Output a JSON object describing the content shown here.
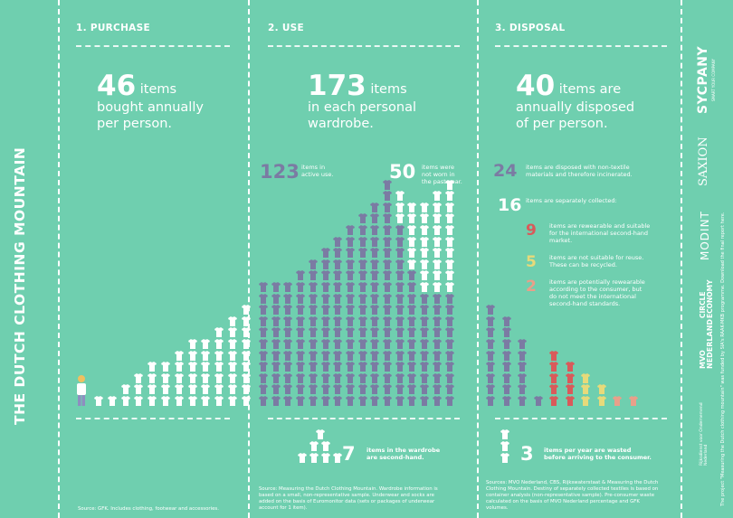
{
  "title": "THE DUTCH CLOTHING MOUNTAIN",
  "colors": {
    "background": "#6fcfaf",
    "white": "#ffffff",
    "purple": "#7b7ba3",
    "red": "#d95a5a",
    "yellow": "#e7da7a",
    "peach": "#e8a08a",
    "figure": "#f0c060"
  },
  "purchase": {
    "heading": "1. PURCHASE",
    "number": "46",
    "text": [
      "items",
      "bought annually",
      "per person."
    ],
    "source": "Source: GFK. Includes clothing, footwear and accessories."
  },
  "use": {
    "heading": "2. USE",
    "number": "173",
    "text": [
      "items",
      "in each personal",
      "wardrobe."
    ],
    "active_num": "123",
    "active_text": [
      "items in",
      "active use."
    ],
    "notworn_num": "50",
    "notworn_text": [
      "items were",
      "not worn in",
      "the past year."
    ],
    "second_num": "7",
    "second_text": [
      "items in the wardrobe",
      "are second-hand."
    ],
    "source": [
      "Source: Measuring the Dutch Clothing Mountain. Wardrobe information is",
      "based on a small, non-representative sample. Underwear and socks are",
      "added on the basis of Euromonitor data (sets or packages of underwear",
      "account for 1 item)."
    ]
  },
  "disposal": {
    "heading": "3. DISPOSAL",
    "number": "40",
    "text": [
      "items are",
      "annually disposed",
      "of per person."
    ],
    "stats": [
      {
        "num": "24",
        "text": [
          "items are disposed with non-textile",
          "materials and therefore incinerated."
        ],
        "color": "#7b7ba3"
      },
      {
        "num": "16",
        "text": [
          "items are separately collected:"
        ],
        "color": "#ffffff"
      },
      {
        "num": "9",
        "text": [
          "items are rewearable and suitable",
          "for the international second-hand",
          "market."
        ],
        "color": "#d95a5a"
      },
      {
        "num": "5",
        "text": [
          "items are not suitable for reuse.",
          "These can be recycled."
        ],
        "color": "#e7da7a"
      },
      {
        "num": "2",
        "text": [
          "items are potentially rewearable",
          "according to the consumer, but",
          "do not meet the international",
          "second-hand standards."
        ],
        "color": "#e8a08a"
      }
    ],
    "wasted_num": "3",
    "wasted_text": [
      "items per year are wasted",
      "before arriving to the consumer."
    ],
    "source": [
      "Sources: MVO Nederland, CBS, Rijkswaterstaat & Measuring the Dutch",
      "Clothing Mountain. Destiny of separately collected textiles is based on",
      "container analysis (non-representative sample). Pre-consumer waste",
      "calculated on the basis of MVO Nederland percentage and GFK",
      "volumes."
    ]
  },
  "sidebar": {
    "logos": [
      "SYCPANY",
      "SAXION",
      "MODINT",
      "CIRCLE ECONOMY",
      "MVO NEDERLAND",
      "Rijksdienst voor Ondernemend Nederland"
    ],
    "syc_sub": "SMART YOUR COMPANY",
    "note": "The project \"Measuring the Dutch clothing mountain\" was funded by SIA's RAAK-MKB programme. Download the final report here."
  }
}
